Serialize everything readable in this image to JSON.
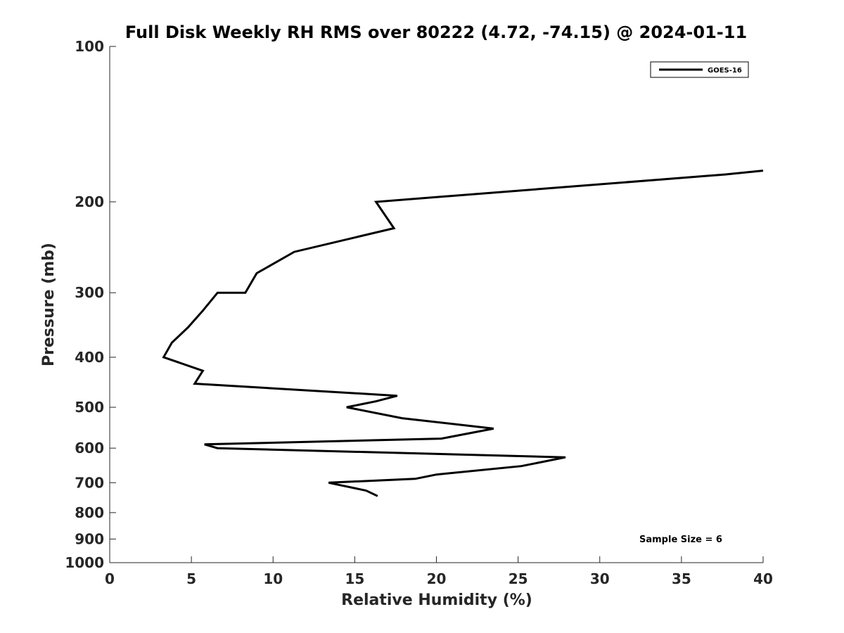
{
  "chart_data": {
    "type": "line",
    "title": "Full Disk Weekly RH RMS over 80222 (4.72, -74.15) @ 2024-01-11",
    "xlabel": "Relative Humidity (%)",
    "ylabel": "Pressure (mb)",
    "xlim": [
      0,
      40
    ],
    "ylim": [
      1000,
      100
    ],
    "yscale": "log",
    "y_reversed": true,
    "grid": false,
    "legend_position": "top-right",
    "x_ticks": [
      0,
      5,
      10,
      15,
      20,
      25,
      30,
      35,
      40
    ],
    "x_tick_labels": [
      "0",
      "5",
      "10",
      "15",
      "20",
      "25",
      "30",
      "35",
      "40"
    ],
    "y_ticks": [
      100,
      200,
      300,
      400,
      500,
      600,
      700,
      800,
      900,
      1000
    ],
    "y_tick_labels": [
      "100",
      "200",
      "300",
      "400",
      "500",
      "600",
      "700",
      "800",
      "900",
      "1000"
    ],
    "series": [
      {
        "name": "GOES-16",
        "color": "#000000",
        "points": [
          {
            "x": 40.0,
            "y": 174
          },
          {
            "x": 37.7,
            "y": 177
          },
          {
            "x": 16.3,
            "y": 200
          },
          {
            "x": 17.4,
            "y": 225
          },
          {
            "x": 11.3,
            "y": 250
          },
          {
            "x": 9.0,
            "y": 275
          },
          {
            "x": 8.3,
            "y": 300
          },
          {
            "x": 6.6,
            "y": 300
          },
          {
            "x": 5.7,
            "y": 325
          },
          {
            "x": 4.8,
            "y": 350
          },
          {
            "x": 3.8,
            "y": 375
          },
          {
            "x": 3.3,
            "y": 400
          },
          {
            "x": 5.7,
            "y": 425
          },
          {
            "x": 5.2,
            "y": 450
          },
          {
            "x": 17.6,
            "y": 475
          },
          {
            "x": 16.3,
            "y": 487
          },
          {
            "x": 14.5,
            "y": 500
          },
          {
            "x": 17.9,
            "y": 525
          },
          {
            "x": 23.5,
            "y": 550
          },
          {
            "x": 20.3,
            "y": 575
          },
          {
            "x": 5.8,
            "y": 590
          },
          {
            "x": 6.6,
            "y": 600
          },
          {
            "x": 27.9,
            "y": 625
          },
          {
            "x": 25.2,
            "y": 650
          },
          {
            "x": 20.0,
            "y": 675
          },
          {
            "x": 18.7,
            "y": 688
          },
          {
            "x": 13.4,
            "y": 700
          },
          {
            "x": 15.7,
            "y": 725
          },
          {
            "x": 16.4,
            "y": 743
          }
        ]
      }
    ],
    "annotations": [
      {
        "text": "Sample Size = 6",
        "position": "bottom-right"
      }
    ]
  }
}
